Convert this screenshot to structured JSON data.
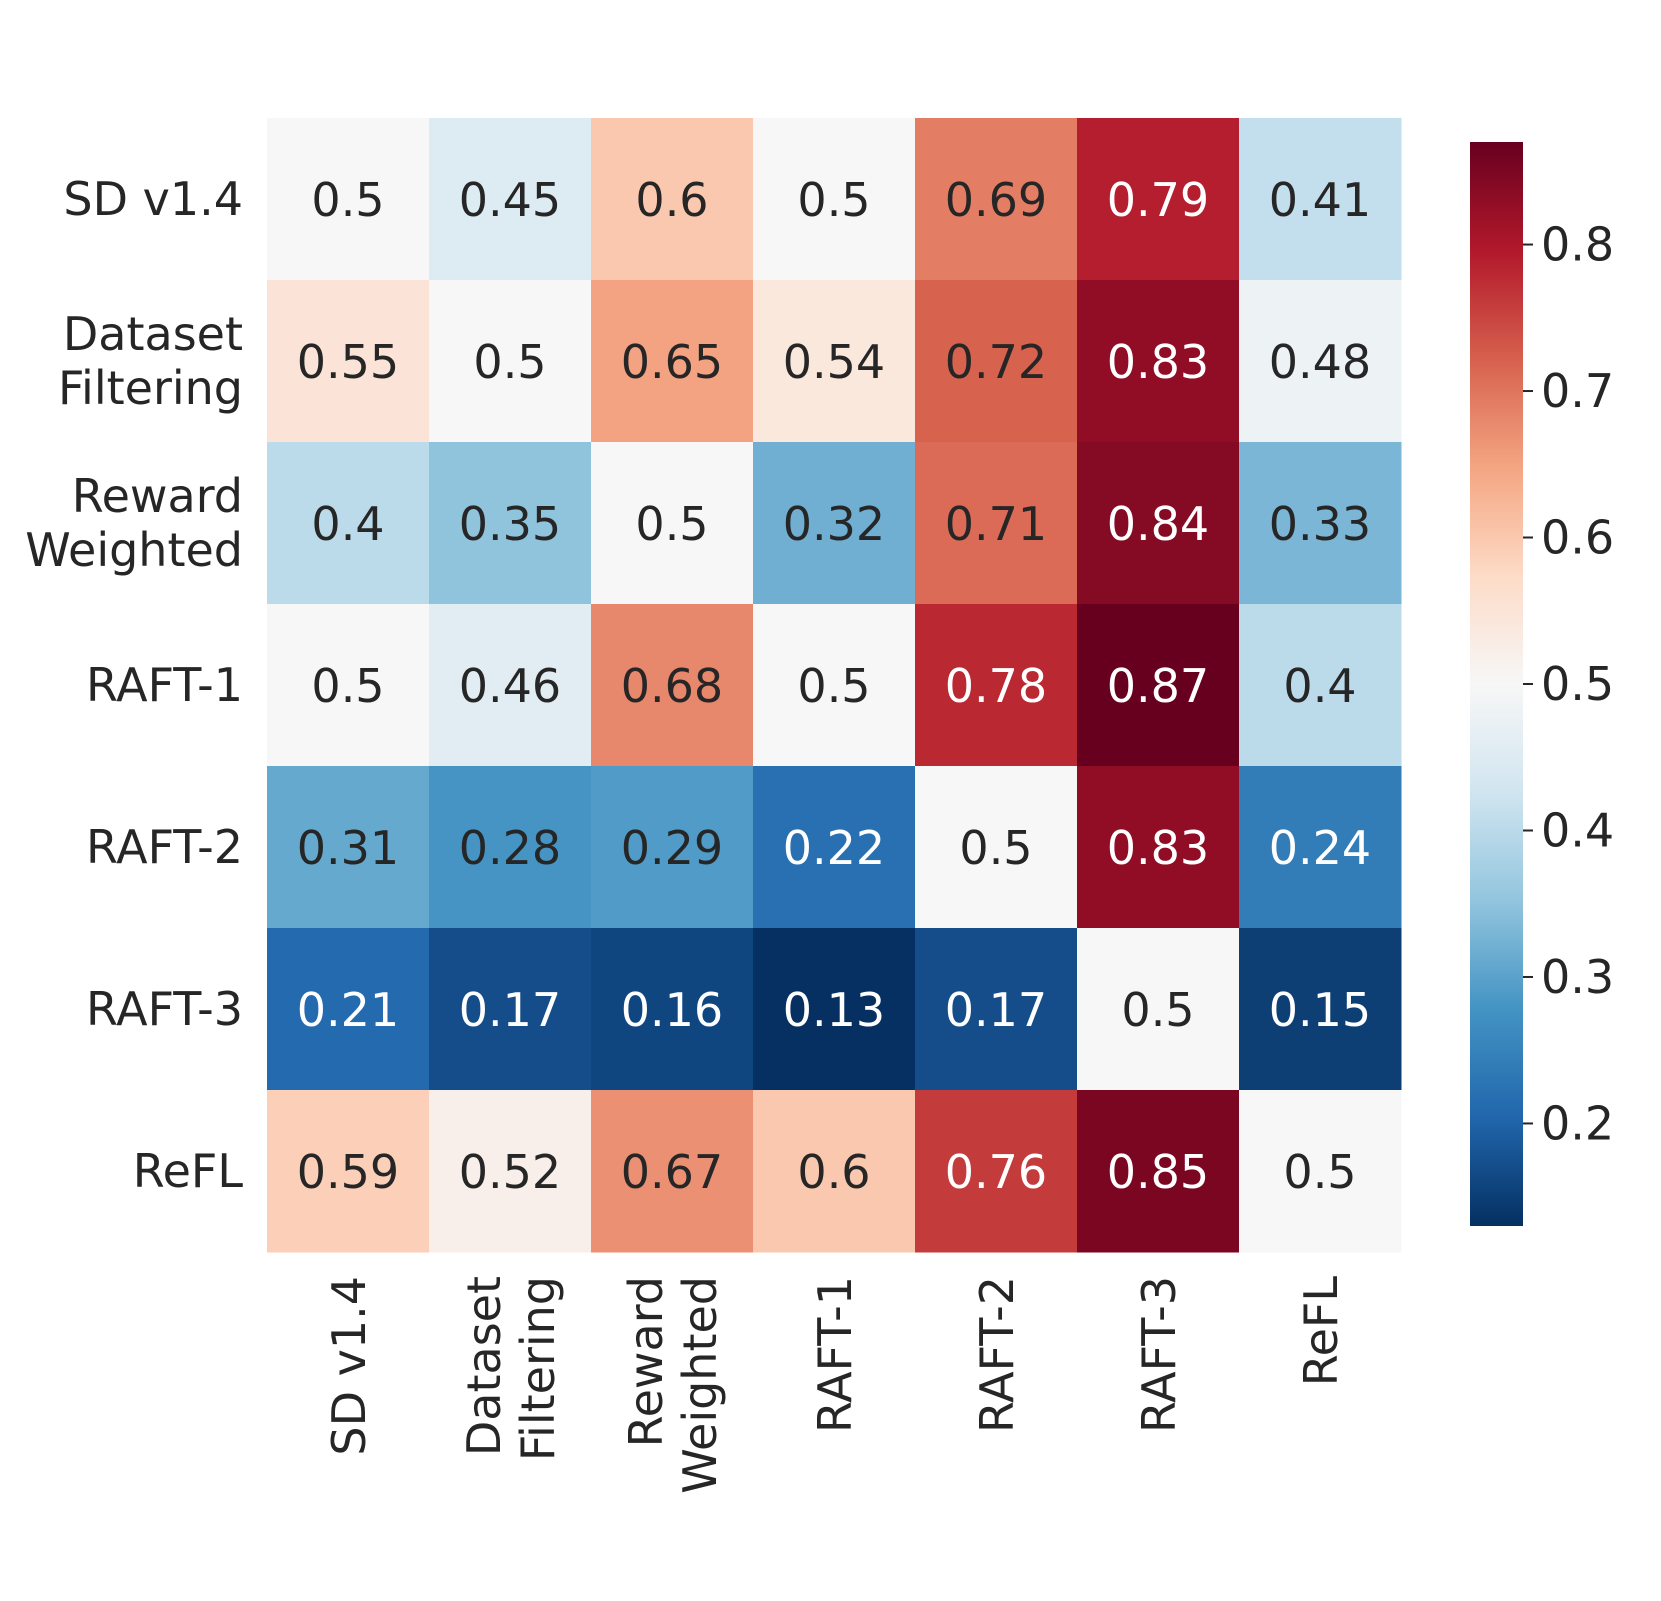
{
  "chart_data": {
    "type": "heatmap",
    "title": "",
    "xlabel": "",
    "ylabel": "",
    "rows": [
      "SD v1.4",
      "Dataset Filtering",
      "Reward Weighted",
      "RAFT-1",
      "RAFT-2",
      "RAFT-3",
      "ReFL"
    ],
    "columns": [
      "SD v1.4",
      "Dataset Filtering",
      "Reward Weighted",
      "RAFT-1",
      "RAFT-2",
      "RAFT-3",
      "ReFL"
    ],
    "values": [
      [
        0.5,
        0.45,
        0.6,
        0.5,
        0.69,
        0.79,
        0.41
      ],
      [
        0.55,
        0.5,
        0.65,
        0.54,
        0.72,
        0.83,
        0.48
      ],
      [
        0.4,
        0.35,
        0.5,
        0.32,
        0.71,
        0.84,
        0.33
      ],
      [
        0.5,
        0.46,
        0.68,
        0.5,
        0.78,
        0.87,
        0.4
      ],
      [
        0.31,
        0.28,
        0.29,
        0.22,
        0.5,
        0.83,
        0.24
      ],
      [
        0.21,
        0.17,
        0.16,
        0.13,
        0.17,
        0.5,
        0.15
      ],
      [
        0.59,
        0.52,
        0.67,
        0.6,
        0.76,
        0.85,
        0.5
      ]
    ],
    "colormap": "RdBu_r",
    "color_range": [
      0.13,
      0.87
    ],
    "colorbar_ticks": [
      0.2,
      0.3,
      0.4,
      0.5,
      0.6,
      0.7,
      0.8
    ],
    "colorbar_tick_labels": [
      "0.2",
      "0.3",
      "0.4",
      "0.5",
      "0.6",
      "0.7",
      "0.8"
    ],
    "annotations": true
  }
}
